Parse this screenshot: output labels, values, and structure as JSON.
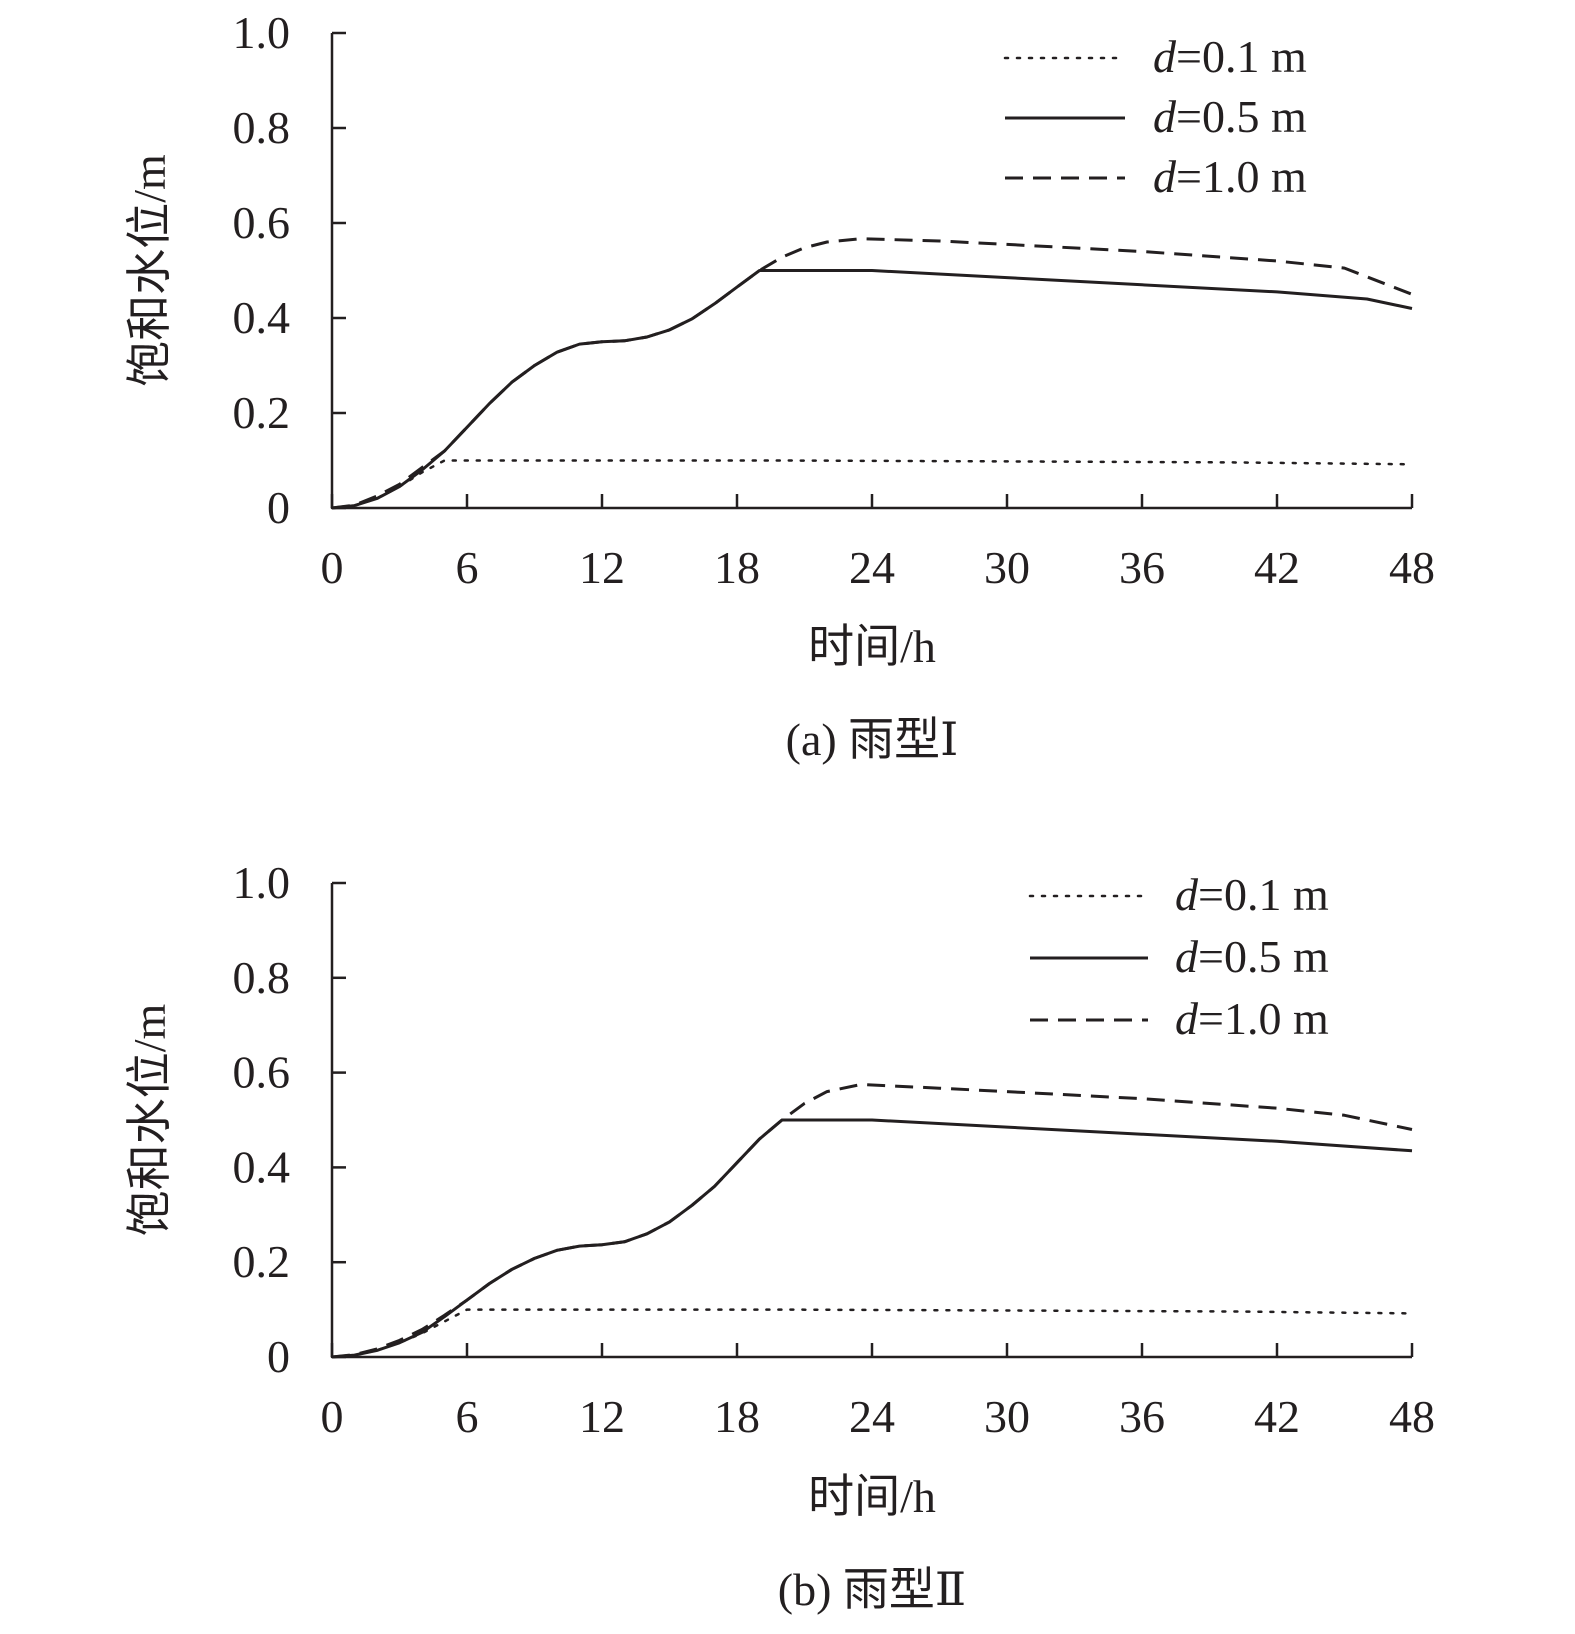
{
  "chart_data": [
    {
      "type": "line",
      "caption": "(a) 雨型Ⅰ",
      "xlabel": "时间/h",
      "ylabel": "饱和水位/m",
      "xlim": [
        0,
        48
      ],
      "ylim": [
        0,
        1.0
      ],
      "xticks": [
        "0",
        "6",
        "12",
        "18",
        "24",
        "30",
        "36",
        "42",
        "48"
      ],
      "yticks": [
        "0",
        "0.2",
        "0.4",
        "0.6",
        "0.8",
        "1.0"
      ],
      "grid": false,
      "legend_position": "top-right",
      "line_color": "#231f20",
      "series": [
        {
          "name_var": "d",
          "name_rest": "=0.1 m",
          "style": "dotted",
          "points": [
            [
              0,
              0
            ],
            [
              1,
              0.005
            ],
            [
              2,
              0.02
            ],
            [
              3,
              0.045
            ],
            [
              4,
              0.075
            ],
            [
              5,
              0.1
            ],
            [
              10,
              0.1
            ],
            [
              20,
              0.1
            ],
            [
              30,
              0.098
            ],
            [
              40,
              0.096
            ],
            [
              48,
              0.092
            ]
          ]
        },
        {
          "name_var": "d",
          "name_rest": "=0.5 m",
          "style": "solid",
          "points": [
            [
              0,
              0
            ],
            [
              1,
              0.005
            ],
            [
              2,
              0.02
            ],
            [
              3,
              0.045
            ],
            [
              4,
              0.08
            ],
            [
              5,
              0.12
            ],
            [
              6,
              0.17
            ],
            [
              7,
              0.22
            ],
            [
              8,
              0.265
            ],
            [
              9,
              0.3
            ],
            [
              10,
              0.328
            ],
            [
              11,
              0.345
            ],
            [
              12,
              0.35
            ],
            [
              13,
              0.352
            ],
            [
              14,
              0.36
            ],
            [
              15,
              0.375
            ],
            [
              16,
              0.398
            ],
            [
              17,
              0.43
            ],
            [
              18,
              0.465
            ],
            [
              19,
              0.5
            ],
            [
              24,
              0.5
            ],
            [
              30,
              0.485
            ],
            [
              36,
              0.47
            ],
            [
              42,
              0.455
            ],
            [
              46,
              0.44
            ],
            [
              48,
              0.42
            ]
          ]
        },
        {
          "name_var": "d",
          "name_rest": "=1.0 m",
          "style": "dashed",
          "points": [
            [
              0,
              0
            ],
            [
              1,
              0.006
            ],
            [
              2,
              0.025
            ],
            [
              3,
              0.05
            ],
            [
              4,
              0.085
            ],
            [
              5,
              0.12
            ],
            [
              6,
              0.17
            ],
            [
              7,
              0.22
            ],
            [
              8,
              0.265
            ],
            [
              9,
              0.3
            ],
            [
              10,
              0.328
            ],
            [
              11,
              0.345
            ],
            [
              12,
              0.35
            ],
            [
              13,
              0.352
            ],
            [
              14,
              0.36
            ],
            [
              15,
              0.375
            ],
            [
              16,
              0.398
            ],
            [
              17,
              0.43
            ],
            [
              18,
              0.465
            ],
            [
              19,
              0.5
            ],
            [
              20,
              0.528
            ],
            [
              21,
              0.548
            ],
            [
              22,
              0.56
            ],
            [
              23.5,
              0.567
            ],
            [
              27,
              0.562
            ],
            [
              30,
              0.555
            ],
            [
              36,
              0.54
            ],
            [
              42,
              0.52
            ],
            [
              45,
              0.505
            ],
            [
              48,
              0.45
            ]
          ]
        }
      ]
    },
    {
      "type": "line",
      "caption": "(b) 雨型Ⅱ",
      "xlabel": "时间/h",
      "ylabel": "饱和水位/m",
      "xlim": [
        0,
        48
      ],
      "ylim": [
        0,
        1.0
      ],
      "xticks": [
        "0",
        "6",
        "12",
        "18",
        "24",
        "30",
        "36",
        "42",
        "48"
      ],
      "yticks": [
        "0",
        "0.2",
        "0.4",
        "0.6",
        "0.8",
        "1.0"
      ],
      "grid": false,
      "legend_position": "top-right",
      "line_color": "#231f20",
      "series": [
        {
          "name_var": "d",
          "name_rest": "=0.1 m",
          "style": "dotted",
          "points": [
            [
              0,
              0
            ],
            [
              1,
              0.004
            ],
            [
              2,
              0.014
            ],
            [
              3,
              0.03
            ],
            [
              4,
              0.05
            ],
            [
              5,
              0.075
            ],
            [
              6,
              0.1
            ],
            [
              12,
              0.1
            ],
            [
              20,
              0.1
            ],
            [
              30,
              0.098
            ],
            [
              40,
              0.096
            ],
            [
              48,
              0.092
            ]
          ]
        },
        {
          "name_var": "d",
          "name_rest": "=0.5 m",
          "style": "solid",
          "points": [
            [
              0,
              0
            ],
            [
              1,
              0.004
            ],
            [
              2,
              0.014
            ],
            [
              3,
              0.03
            ],
            [
              4,
              0.052
            ],
            [
              5,
              0.085
            ],
            [
              6,
              0.12
            ],
            [
              7,
              0.155
            ],
            [
              8,
              0.185
            ],
            [
              9,
              0.208
            ],
            [
              10,
              0.225
            ],
            [
              11,
              0.234
            ],
            [
              12,
              0.237
            ],
            [
              13,
              0.243
            ],
            [
              14,
              0.26
            ],
            [
              15,
              0.285
            ],
            [
              16,
              0.32
            ],
            [
              17,
              0.36
            ],
            [
              18,
              0.41
            ],
            [
              19,
              0.46
            ],
            [
              20,
              0.5
            ],
            [
              24,
              0.5
            ],
            [
              30,
              0.485
            ],
            [
              36,
              0.47
            ],
            [
              42,
              0.455
            ],
            [
              48,
              0.435
            ]
          ]
        },
        {
          "name_var": "d",
          "name_rest": "=1.0 m",
          "style": "dashed",
          "points": [
            [
              0,
              0
            ],
            [
              1,
              0.005
            ],
            [
              2,
              0.017
            ],
            [
              3,
              0.035
            ],
            [
              4,
              0.058
            ],
            [
              5,
              0.088
            ],
            [
              6,
              0.12
            ],
            [
              7,
              0.155
            ],
            [
              8,
              0.185
            ],
            [
              9,
              0.208
            ],
            [
              10,
              0.225
            ],
            [
              11,
              0.234
            ],
            [
              12,
              0.237
            ],
            [
              13,
              0.243
            ],
            [
              14,
              0.26
            ],
            [
              15,
              0.285
            ],
            [
              16,
              0.32
            ],
            [
              17,
              0.36
            ],
            [
              18,
              0.41
            ],
            [
              19,
              0.46
            ],
            [
              20,
              0.5
            ],
            [
              21,
              0.535
            ],
            [
              22,
              0.56
            ],
            [
              23.5,
              0.575
            ],
            [
              27,
              0.567
            ],
            [
              30,
              0.56
            ],
            [
              36,
              0.545
            ],
            [
              42,
              0.525
            ],
            [
              45,
              0.51
            ],
            [
              48,
              0.48
            ]
          ]
        }
      ]
    }
  ]
}
